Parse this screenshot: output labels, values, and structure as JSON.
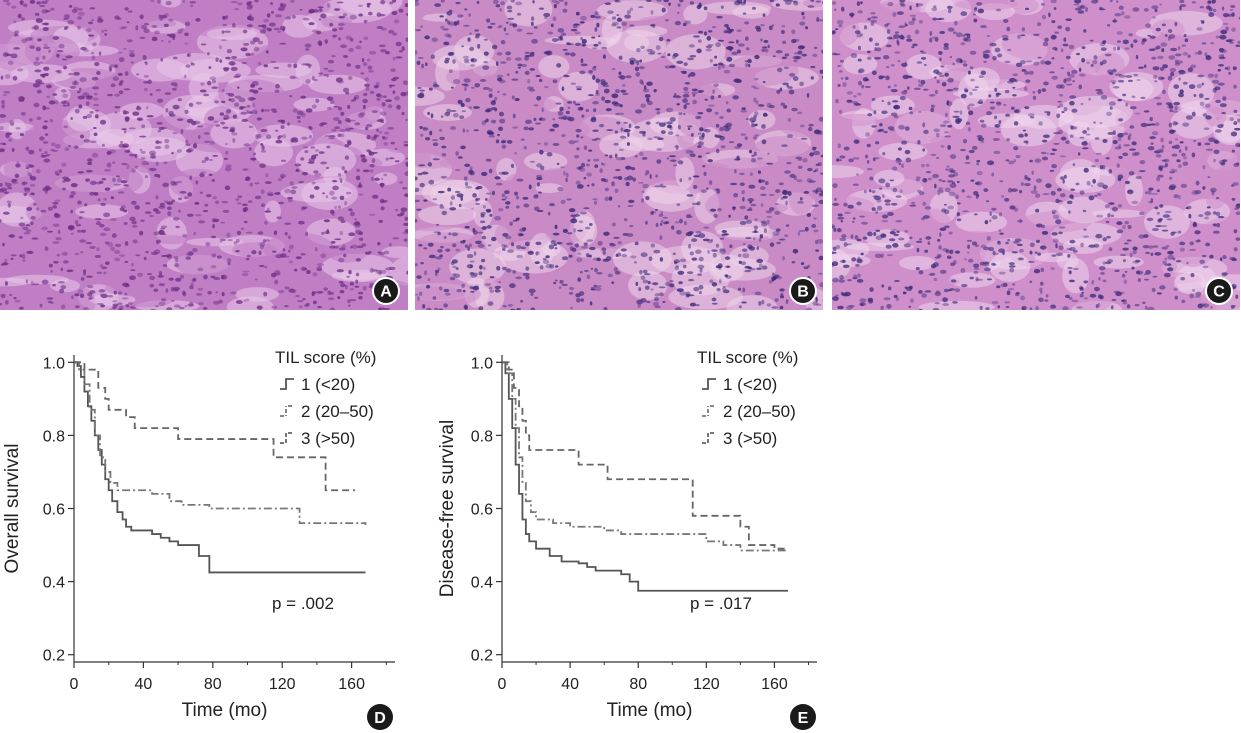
{
  "histology_panels": [
    {
      "label": "A",
      "base_color": "#c07ec4",
      "dark_color": "#6e2f86",
      "light_color": "#e8c9ea"
    },
    {
      "label": "B",
      "base_color": "#c98bc6",
      "dark_color": "#3e2a7a",
      "light_color": "#ecd3ea"
    },
    {
      "label": "C",
      "base_color": "#cf8fcb",
      "dark_color": "#43307e",
      "light_color": "#eed6ed"
    }
  ],
  "chart_data": [
    {
      "type": "line",
      "subtype": "kaplan-meier-step",
      "panel_label": "D",
      "xlabel": "Time (mo)",
      "ylabel": "Overall survival",
      "xlim": [
        0,
        185
      ],
      "ylim": [
        0.18,
        1.02
      ],
      "xticks": [
        "0",
        "40",
        "80",
        "120",
        "160"
      ],
      "xtick_values": [
        0,
        40,
        80,
        120,
        160
      ],
      "yticks": [
        "0.2",
        "0.4",
        "0.6",
        "0.8",
        "1.0"
      ],
      "ytick_values": [
        0.2,
        0.4,
        0.6,
        0.8,
        1.0
      ],
      "legend_title": "TIL score (%)",
      "legend_position": "top-right",
      "annotation": "p = .002",
      "series": [
        {
          "name": "1 (<20)",
          "style": "solid",
          "points": [
            [
              0,
              1.0
            ],
            [
              2,
              0.99
            ],
            [
              4,
              0.96
            ],
            [
              6,
              0.92
            ],
            [
              8,
              0.88
            ],
            [
              10,
              0.84
            ],
            [
              12,
              0.8
            ],
            [
              14,
              0.76
            ],
            [
              16,
              0.72
            ],
            [
              18,
              0.68
            ],
            [
              20,
              0.65
            ],
            [
              22,
              0.62
            ],
            [
              25,
              0.59
            ],
            [
              28,
              0.57
            ],
            [
              30,
              0.55
            ],
            [
              33,
              0.54
            ],
            [
              45,
              0.53
            ],
            [
              50,
              0.52
            ],
            [
              55,
              0.51
            ],
            [
              60,
              0.5
            ],
            [
              72,
              0.47
            ],
            [
              78,
              0.425
            ],
            [
              168,
              0.425
            ]
          ]
        },
        {
          "name": "2 (20–50)",
          "style": "dashdot",
          "points": [
            [
              0,
              1.0
            ],
            [
              3,
              0.98
            ],
            [
              6,
              0.94
            ],
            [
              9,
              0.87
            ],
            [
              12,
              0.8
            ],
            [
              15,
              0.74
            ],
            [
              18,
              0.7
            ],
            [
              21,
              0.67
            ],
            [
              25,
              0.65
            ],
            [
              45,
              0.64
            ],
            [
              55,
              0.62
            ],
            [
              62,
              0.61
            ],
            [
              78,
              0.6
            ],
            [
              120,
              0.6
            ],
            [
              130,
              0.56
            ],
            [
              168,
              0.555
            ]
          ]
        },
        {
          "name": "3 (>50)",
          "style": "dashed",
          "points": [
            [
              0,
              1.0
            ],
            [
              6,
              0.98
            ],
            [
              12,
              0.98
            ],
            [
              14,
              0.93
            ],
            [
              18,
              0.9
            ],
            [
              20,
              0.87
            ],
            [
              30,
              0.85
            ],
            [
              35,
              0.82
            ],
            [
              60,
              0.79
            ],
            [
              115,
              0.79
            ],
            [
              115,
              0.74
            ],
            [
              138,
              0.74
            ],
            [
              145,
              0.65
            ],
            [
              162,
              0.65
            ]
          ]
        }
      ]
    },
    {
      "type": "line",
      "subtype": "kaplan-meier-step",
      "panel_label": "E",
      "xlabel": "Time (mo)",
      "ylabel": "Disease-free survival",
      "xlim": [
        0,
        185
      ],
      "ylim": [
        0.18,
        1.02
      ],
      "xticks": [
        "0",
        "40",
        "80",
        "120",
        "160"
      ],
      "xtick_values": [
        0,
        40,
        80,
        120,
        160
      ],
      "yticks": [
        "0.2",
        "0.4",
        "0.6",
        "0.8",
        "1.0"
      ],
      "ytick_values": [
        0.2,
        0.4,
        0.6,
        0.8,
        1.0
      ],
      "legend_title": "TIL score (%)",
      "legend_position": "top-right",
      "annotation": "p = .017",
      "series": [
        {
          "name": "1 (<20)",
          "style": "solid",
          "points": [
            [
              0,
              1.0
            ],
            [
              2,
              0.97
            ],
            [
              4,
              0.9
            ],
            [
              6,
              0.82
            ],
            [
              8,
              0.72
            ],
            [
              10,
              0.64
            ],
            [
              12,
              0.57
            ],
            [
              14,
              0.53
            ],
            [
              16,
              0.51
            ],
            [
              20,
              0.49
            ],
            [
              28,
              0.47
            ],
            [
              35,
              0.455
            ],
            [
              45,
              0.45
            ],
            [
              50,
              0.44
            ],
            [
              55,
              0.43
            ],
            [
              70,
              0.42
            ],
            [
              75,
              0.4
            ],
            [
              80,
              0.375
            ],
            [
              168,
              0.375
            ]
          ]
        },
        {
          "name": "2 (20–50)",
          "style": "dashdot",
          "points": [
            [
              0,
              1.0
            ],
            [
              3,
              0.97
            ],
            [
              6,
              0.9
            ],
            [
              8,
              0.82
            ],
            [
              10,
              0.74
            ],
            [
              12,
              0.67
            ],
            [
              14,
              0.62
            ],
            [
              17,
              0.59
            ],
            [
              20,
              0.57
            ],
            [
              30,
              0.56
            ],
            [
              40,
              0.55
            ],
            [
              60,
              0.54
            ],
            [
              70,
              0.53
            ],
            [
              85,
              0.53
            ],
            [
              110,
              0.53
            ],
            [
              120,
              0.51
            ],
            [
              130,
              0.5
            ],
            [
              140,
              0.485
            ],
            [
              168,
              0.485
            ]
          ]
        },
        {
          "name": "3 (>50)",
          "style": "dashed",
          "points": [
            [
              0,
              1.0
            ],
            [
              4,
              0.98
            ],
            [
              7,
              0.93
            ],
            [
              10,
              0.88
            ],
            [
              12,
              0.84
            ],
            [
              14,
              0.8
            ],
            [
              16,
              0.76
            ],
            [
              40,
              0.76
            ],
            [
              45,
              0.72
            ],
            [
              62,
              0.68
            ],
            [
              112,
              0.68
            ],
            [
              112,
              0.58
            ],
            [
              130,
              0.58
            ],
            [
              140,
              0.55
            ],
            [
              145,
              0.5
            ],
            [
              160,
              0.49
            ],
            [
              168,
              0.49
            ]
          ]
        }
      ]
    }
  ]
}
